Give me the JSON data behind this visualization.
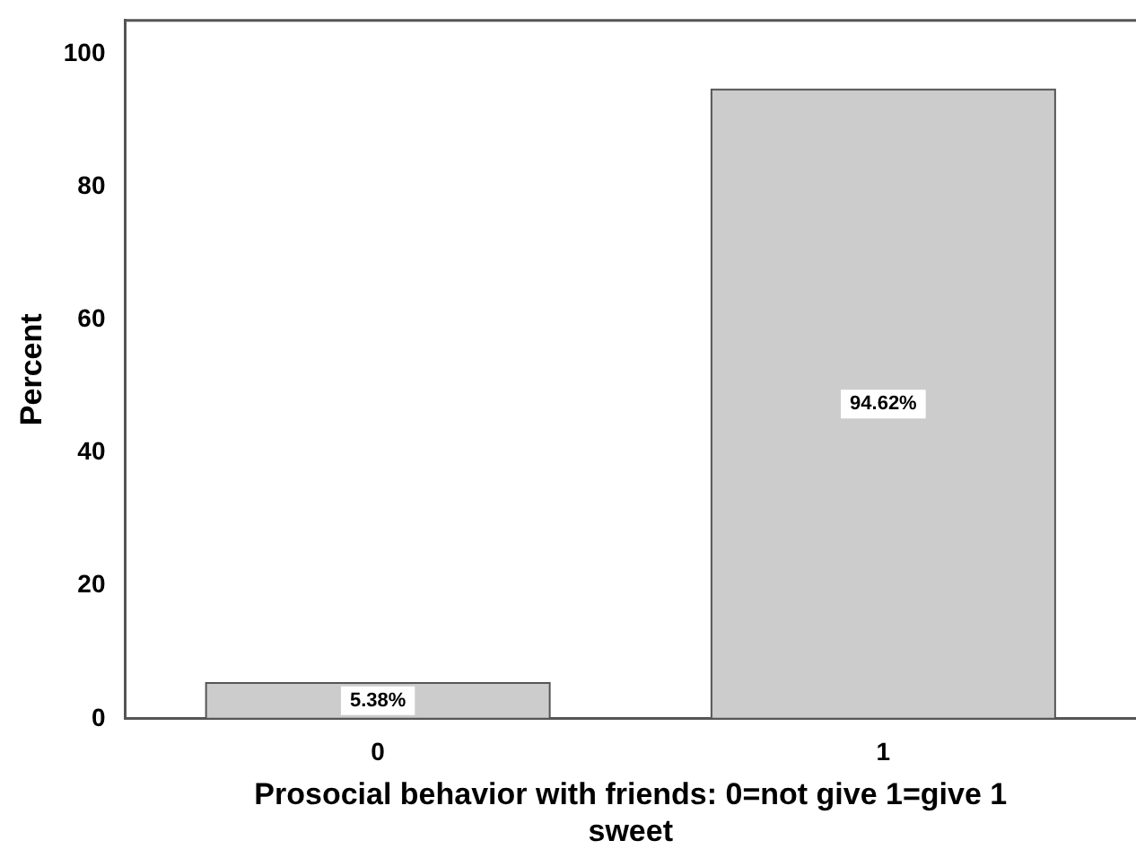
{
  "chart_data": {
    "type": "bar",
    "xlabel": "Prosocial behavior with friends: 0=not give 1=give 1 sweet",
    "ylabel": "Percent",
    "categories": [
      "0",
      "1"
    ],
    "values": [
      5.38,
      94.62
    ],
    "value_labels": [
      "5.38%",
      "94.62%"
    ],
    "color": "#cccccc",
    "ylim": [
      0,
      105
    ],
    "yticks": [
      0,
      20,
      40,
      60,
      80,
      100
    ],
    "grid": false,
    "legend": false
  }
}
